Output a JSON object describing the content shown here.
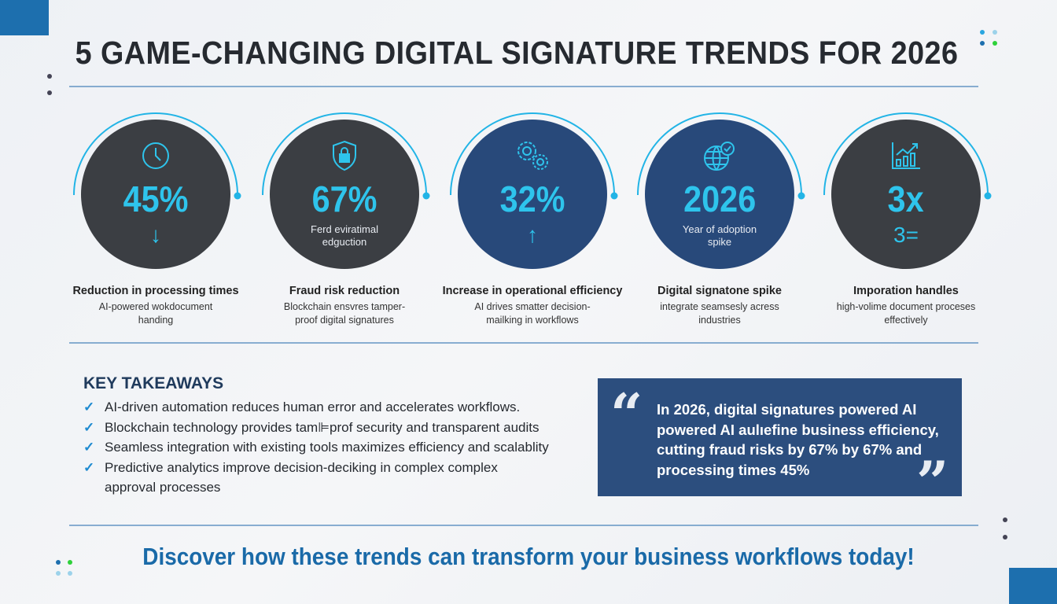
{
  "title": "5 GAME-CHANGING DIGITAL SIGNATURE TRENDS FOR 2026",
  "colors": {
    "accent": "#2ec4ec",
    "dark_circle": "#3b3e43",
    "blue_circle": "#28497a",
    "brand_blue": "#1d6fae"
  },
  "stats": [
    {
      "icon": "clock-icon",
      "value": "45%",
      "sub": "",
      "indicator": "↓",
      "label": "Reduction in processing times",
      "desc": "AI-powered wokdocument handing",
      "style": "dark"
    },
    {
      "icon": "shield-lock-icon",
      "value": "67%",
      "sub": "Ferd eviratimal edguction",
      "indicator": "",
      "label": "Fraud risk reduction",
      "desc": "Blockchain ensvres tamper-proof digital signatures",
      "style": "dark"
    },
    {
      "icon": "gears-icon",
      "value": "32%",
      "sub": "",
      "indicator": "↑",
      "label": "Increase in operational efficiency",
      "desc": "AI drives smatter decision-mailking in workflows",
      "style": "blue"
    },
    {
      "icon": "globe-check-icon",
      "value": "2026",
      "sub": "Year of adoption spike",
      "indicator": "",
      "label": "Digital signatone spike",
      "desc": "integrate seamsesly acress industries",
      "style": "blue"
    },
    {
      "icon": "bar-chart-icon",
      "value": "3x",
      "sub": "",
      "indicator": "3=",
      "label": "Imporation handles",
      "desc": "high-volime document proceses effectively",
      "style": "dark"
    }
  ],
  "takeaways": {
    "title": "KEY TAKEAWAYS",
    "items": [
      "AI-driven automation reduces human error and accelerates workflows.",
      "Blockchain technology provides tam⊫prof security and transparent audits",
      "Seamless integration with existing tools maximizes efficiency and scalablity",
      "Predictive analytics improve decision-deciking in complex complex approval processes"
    ]
  },
  "quote": {
    "open": "“",
    "close": "”",
    "text": "In 2026, digital signatures powered AI powered AI aulıefine business efficiency, cutting fraud risks by 67% by 67% and processing times 45%"
  },
  "cta": "Discover how these trends can transform your business workflows today!"
}
